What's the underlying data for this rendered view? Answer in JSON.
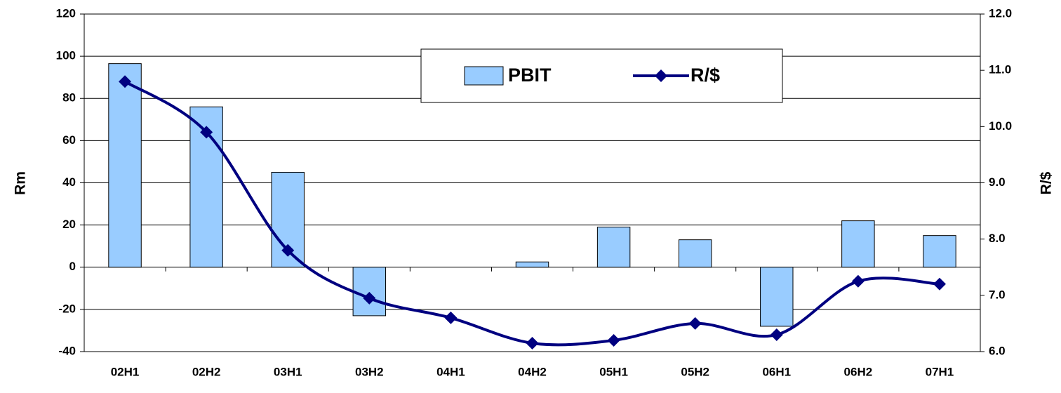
{
  "chart_data": {
    "type": "bar-line",
    "categories": [
      "02H1",
      "02H2",
      "03H1",
      "03H2",
      "04H1",
      "04H2",
      "05H1",
      "05H2",
      "06H1",
      "06H2",
      "07H1"
    ],
    "series": [
      {
        "name": "PBIT",
        "color": "#99ccff",
        "type": "bar",
        "values": [
          96.5,
          76,
          45,
          -23,
          0,
          2.5,
          19,
          13,
          -28,
          22,
          15
        ]
      },
      {
        "name": "R/$",
        "color": "#000080",
        "type": "line",
        "axis": "y2",
        "values": [
          10.8,
          9.9,
          7.8,
          6.95,
          6.6,
          6.15,
          6.2,
          6.5,
          6.3,
          7.25,
          7.2
        ]
      }
    ],
    "ylabel": "Rm",
    "y2label": "R/$",
    "ylim": [
      -40,
      120
    ],
    "yticks": [
      -40,
      -20,
      0,
      20,
      40,
      60,
      80,
      100,
      120
    ],
    "y2lim": [
      6,
      12
    ],
    "y2ticks": [
      {
        "value": 6,
        "label": "6.0"
      },
      {
        "value": 7,
        "label": "7.0"
      },
      {
        "value": 8,
        "label": "8.0"
      },
      {
        "value": 9,
        "label": "9.0"
      },
      {
        "value": 10,
        "label": "10.0"
      },
      {
        "value": 11,
        "label": "11.0"
      },
      {
        "value": 12,
        "label": "12.0"
      }
    ],
    "grid": true,
    "legend": "top"
  }
}
